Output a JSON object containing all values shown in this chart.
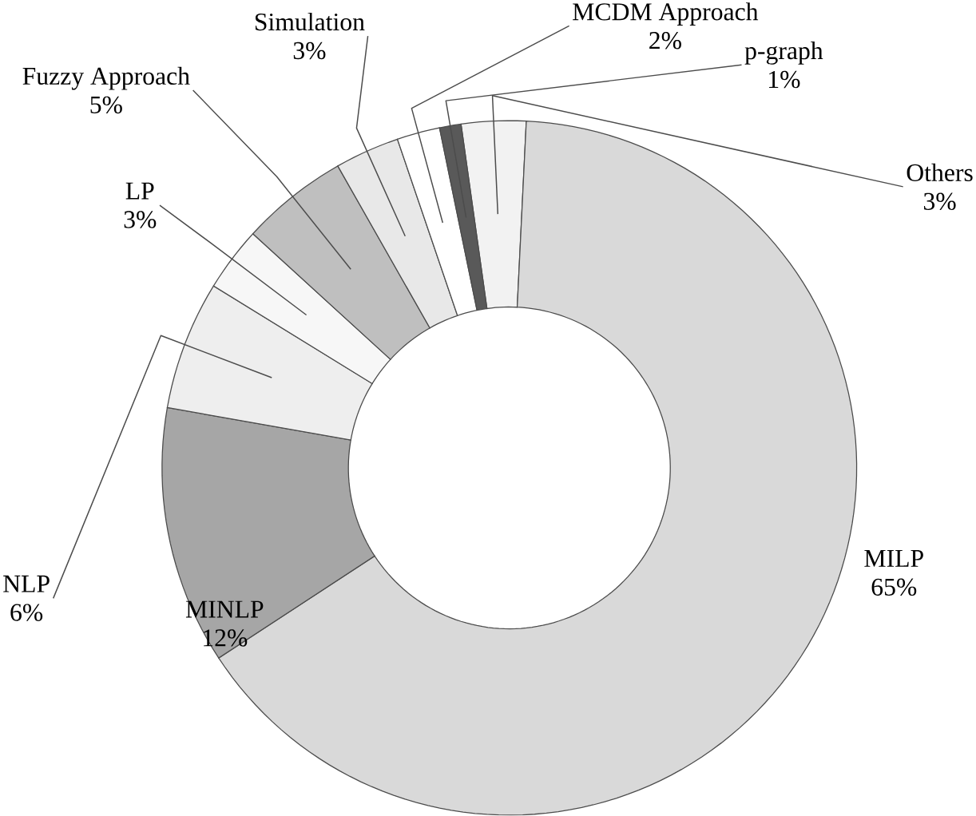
{
  "chart_data": {
    "type": "donut",
    "categories": [
      "Others",
      "MILP",
      "MINLP",
      "NLP",
      "LP",
      "Fuzzy Approach",
      "Simulation",
      "MCDM Approach",
      "p-graph"
    ],
    "values": [
      3,
      65,
      12,
      6,
      3,
      5,
      3,
      2,
      1
    ],
    "colors": [
      "#f2f2f2",
      "#d9d9d9",
      "#a6a6a6",
      "#eeeeee",
      "#f7f7f7",
      "#bfbfbf",
      "#e8e8e8",
      "#ffffff",
      "#595959"
    ],
    "value_labels": [
      "3%",
      "65%",
      "12%",
      "6%",
      "3%",
      "5%",
      "3%",
      "2%",
      "1%"
    ]
  }
}
